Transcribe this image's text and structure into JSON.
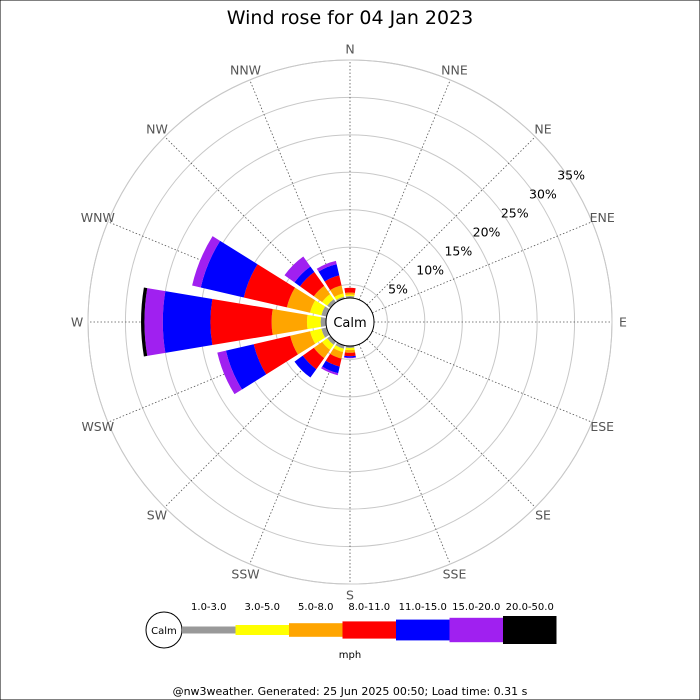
{
  "chart_data": {
    "type": "wind-rose",
    "title": "Wind rose for 04 Jan 2023",
    "center_label": "Calm",
    "directions": [
      "N",
      "NNE",
      "NE",
      "ENE",
      "E",
      "ESE",
      "SE",
      "SSE",
      "S",
      "SSW",
      "SW",
      "WSW",
      "W",
      "WNW",
      "NW",
      "NNW"
    ],
    "ring_values": [
      5,
      10,
      15,
      20,
      25,
      30,
      35
    ],
    "ring_labels": [
      "5%",
      "10%",
      "15%",
      "20%",
      "25%",
      "30%",
      "35%"
    ],
    "rmax": 35,
    "speed_bins": [
      {
        "label": "1.0-3.0",
        "color": "#999999"
      },
      {
        "label": "3.0-5.0",
        "color": "#ffff00"
      },
      {
        "label": "5.0-8.0",
        "color": "#ffa500"
      },
      {
        "label": "8.0-11.0",
        "color": "#ff0000"
      },
      {
        "label": "11.0-15.0",
        "color": "#0000ff"
      },
      {
        "label": "15.0-20.0",
        "color": "#a020f0"
      },
      {
        "label": "20.0-50.0",
        "color": "#000000"
      }
    ],
    "unit_label": "mph",
    "cumulative_percent": {
      "N": [
        0.3,
        0.5,
        0.8,
        1.5,
        1.5,
        1.5,
        1.5
      ],
      "NNE": [
        0,
        0,
        0,
        0,
        0,
        0,
        0
      ],
      "NE": [
        0,
        0,
        0,
        0,
        0,
        0,
        0
      ],
      "ENE": [
        0,
        0,
        0,
        0,
        0,
        0,
        0
      ],
      "E": [
        0,
        0,
        0,
        0,
        0,
        0,
        0
      ],
      "ESE": [
        0,
        0,
        0,
        0,
        0,
        0,
        0
      ],
      "SE": [
        0,
        0,
        0,
        0,
        0,
        0,
        0
      ],
      "SSE": [
        0,
        0,
        0,
        0,
        0,
        0,
        0
      ],
      "S": [
        0.3,
        0.6,
        1.0,
        1.5,
        1.7,
        1.8,
        1.8
      ],
      "SSW": [
        0.5,
        1.0,
        2.0,
        3.2,
        4.2,
        4.5,
        4.5
      ],
      "SW": [
        0.6,
        1.5,
        3.0,
        5.0,
        6.5,
        6.5,
        6.5
      ],
      "WSW": [
        0.8,
        2.5,
        5.5,
        11.0,
        15.2,
        16.5,
        16.5
      ],
      "W": [
        0.8,
        2.8,
        8.0,
        17.0,
        24.0,
        26.7,
        27.2
      ],
      "WNW": [
        0.8,
        2.5,
        6.0,
        12.5,
        19.0,
        20.3,
        20.3
      ],
      "NW": [
        0.6,
        1.5,
        3.0,
        5.5,
        6.5,
        8.3,
        8.3
      ],
      "NNW": [
        0.3,
        0.8,
        2.0,
        3.5,
        5.2,
        5.7,
        5.7
      ]
    }
  },
  "footer": "@nw3weather. Generated: 25 Jun 2025 00:50; Load time: 0.31 s"
}
